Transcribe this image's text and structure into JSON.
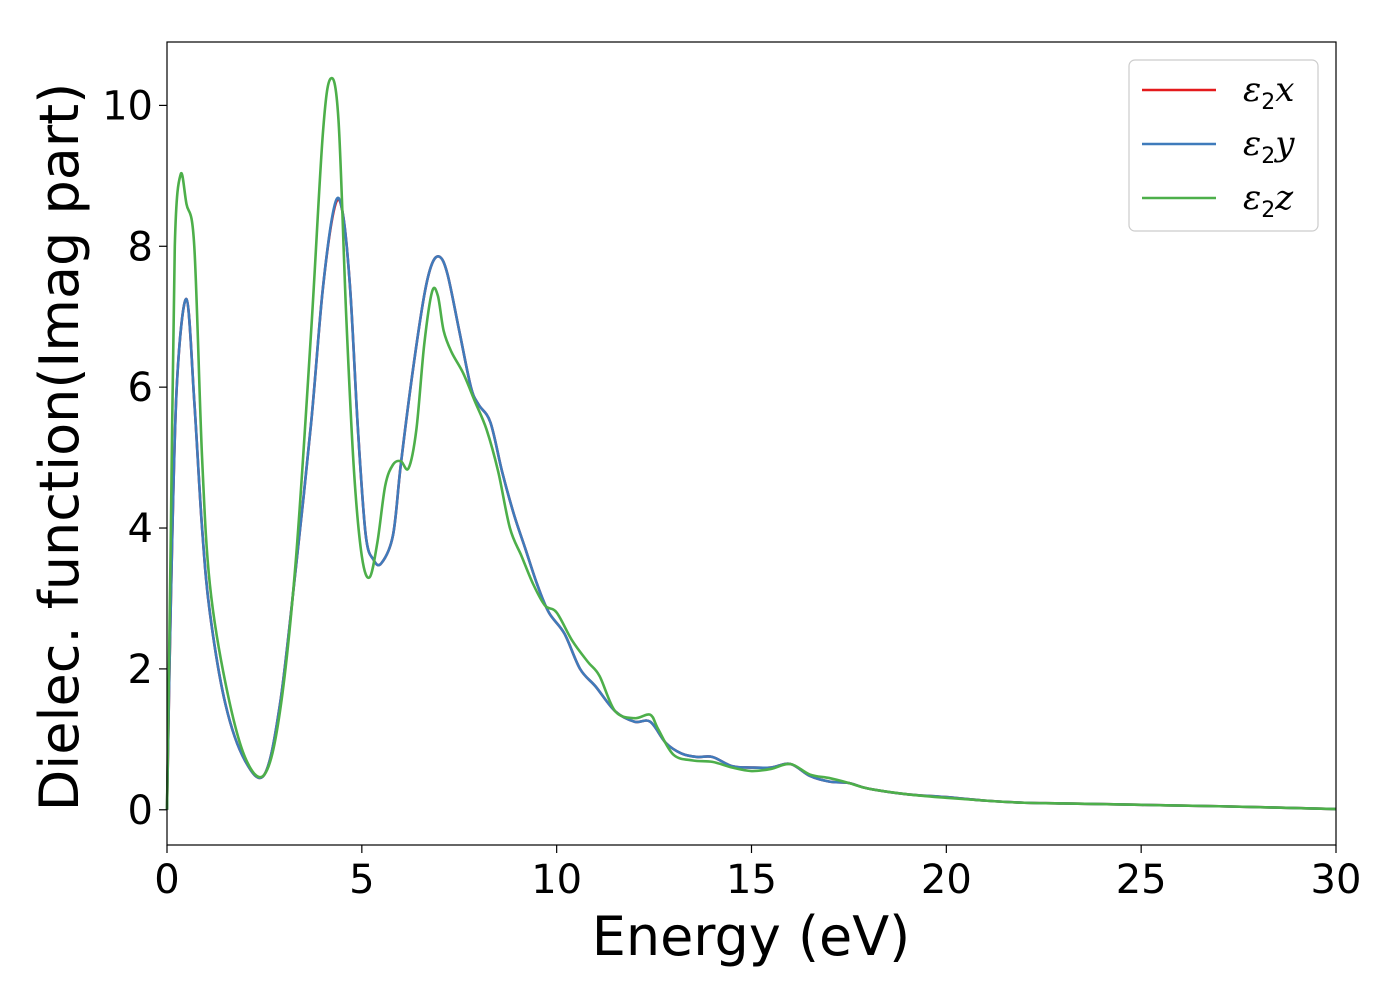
{
  "chart_data": {
    "type": "line",
    "xlabel": "Energy (eV)",
    "ylabel": "Dielec. function(Imag part)",
    "xlim": [
      0,
      30
    ],
    "ylim": [
      -0.5,
      10.9
    ],
    "xticks": [
      0,
      5,
      10,
      15,
      20,
      25,
      30
    ],
    "xtick_labels": [
      "0",
      "5",
      "10",
      "15",
      "20",
      "25",
      "30"
    ],
    "yticks": [
      0,
      2,
      4,
      6,
      8,
      10
    ],
    "ytick_labels": [
      "0",
      "2",
      "4",
      "6",
      "8",
      "10"
    ],
    "grid": false,
    "legend_position": "top-right",
    "series": [
      {
        "name": "ε2x",
        "legend": {
          "symbol": "ε",
          "sub": "2",
          "var": "x"
        },
        "color": "#e41a1c",
        "x": [
          0,
          0.1,
          0.25,
          0.5,
          0.7,
          0.9,
          1.1,
          1.5,
          2.0,
          2.5,
          2.9,
          3.3,
          3.7,
          4.0,
          4.3,
          4.5,
          4.7,
          4.9,
          5.1,
          5.3,
          5.5,
          5.8,
          6.0,
          6.3,
          6.6,
          6.8,
          7.0,
          7.2,
          7.5,
          7.8,
          8.0,
          8.3,
          8.6,
          8.9,
          9.2,
          9.5,
          9.8,
          10.2,
          10.6,
          11.0,
          11.5,
          12.0,
          12.4,
          12.8,
          13.2,
          13.6,
          14.0,
          14.5,
          15.0,
          15.5,
          16.0,
          16.5,
          17.0,
          17.5,
          18.0,
          19.0,
          20.0,
          21.0,
          22.0,
          23.0,
          25.0,
          27.0,
          30.0
        ],
        "y": [
          0.0,
          3.0,
          6.0,
          7.25,
          5.8,
          4.0,
          2.8,
          1.5,
          0.7,
          0.5,
          1.5,
          3.4,
          5.5,
          7.4,
          8.55,
          8.5,
          7.4,
          5.4,
          3.9,
          3.55,
          3.5,
          3.9,
          4.9,
          6.2,
          7.3,
          7.75,
          7.85,
          7.6,
          6.8,
          6.0,
          5.75,
          5.5,
          4.8,
          4.2,
          3.7,
          3.2,
          2.8,
          2.5,
          2.0,
          1.75,
          1.4,
          1.25,
          1.25,
          0.95,
          0.8,
          0.75,
          0.75,
          0.62,
          0.6,
          0.6,
          0.65,
          0.48,
          0.4,
          0.38,
          0.3,
          0.22,
          0.18,
          0.13,
          0.1,
          0.09,
          0.07,
          0.05,
          0.01
        ]
      },
      {
        "name": "ε2y",
        "legend": {
          "symbol": "ε",
          "sub": "2",
          "var": "y"
        },
        "color": "#3f7bbb",
        "x": [
          0,
          0.1,
          0.25,
          0.5,
          0.7,
          0.9,
          1.1,
          1.5,
          2.0,
          2.5,
          2.9,
          3.3,
          3.7,
          4.0,
          4.3,
          4.5,
          4.7,
          4.9,
          5.1,
          5.3,
          5.5,
          5.8,
          6.0,
          6.3,
          6.6,
          6.8,
          7.0,
          7.2,
          7.5,
          7.8,
          8.0,
          8.3,
          8.6,
          8.9,
          9.2,
          9.5,
          9.8,
          10.2,
          10.6,
          11.0,
          11.5,
          12.0,
          12.4,
          12.8,
          13.2,
          13.6,
          14.0,
          14.5,
          15.0,
          15.5,
          16.0,
          16.5,
          17.0,
          17.5,
          18.0,
          19.0,
          20.0,
          21.0,
          22.0,
          23.0,
          25.0,
          27.0,
          30.0
        ],
        "y": [
          0.0,
          3.0,
          6.0,
          7.25,
          5.8,
          4.0,
          2.8,
          1.5,
          0.7,
          0.5,
          1.5,
          3.4,
          5.5,
          7.4,
          8.58,
          8.5,
          7.4,
          5.4,
          3.9,
          3.55,
          3.5,
          3.9,
          4.9,
          6.2,
          7.3,
          7.75,
          7.85,
          7.6,
          6.8,
          6.0,
          5.75,
          5.5,
          4.8,
          4.2,
          3.7,
          3.2,
          2.8,
          2.5,
          2.0,
          1.75,
          1.4,
          1.25,
          1.25,
          0.95,
          0.8,
          0.75,
          0.75,
          0.62,
          0.6,
          0.6,
          0.65,
          0.48,
          0.4,
          0.38,
          0.3,
          0.22,
          0.18,
          0.13,
          0.1,
          0.09,
          0.07,
          0.05,
          0.01
        ]
      },
      {
        "name": "ε2z",
        "legend": {
          "symbol": "ε",
          "sub": "2",
          "var": "z"
        },
        "color": "#4daf4a",
        "x": [
          0,
          0.1,
          0.2,
          0.35,
          0.5,
          0.7,
          0.9,
          1.1,
          1.5,
          2.0,
          2.5,
          2.9,
          3.3,
          3.7,
          4.0,
          4.2,
          4.4,
          4.6,
          4.8,
          5.0,
          5.2,
          5.4,
          5.6,
          5.8,
          6.0,
          6.2,
          6.4,
          6.6,
          6.8,
          6.95,
          7.1,
          7.3,
          7.6,
          7.9,
          8.2,
          8.5,
          8.8,
          9.1,
          9.4,
          9.7,
          10.0,
          10.4,
          10.8,
          11.1,
          11.5,
          12.0,
          12.4,
          12.6,
          13.0,
          13.5,
          14.0,
          14.5,
          15.0,
          15.5,
          16.0,
          16.5,
          17.0,
          17.5,
          18.0,
          19.0,
          20.0,
          21.0,
          22.0,
          23.0,
          25.0,
          27.0,
          30.0
        ],
        "y": [
          0.0,
          4.0,
          8.0,
          9.02,
          8.6,
          8.0,
          5.0,
          3.2,
          1.8,
          0.75,
          0.5,
          1.4,
          3.5,
          6.8,
          9.6,
          10.38,
          9.8,
          7.0,
          4.8,
          3.6,
          3.3,
          3.8,
          4.6,
          4.9,
          4.95,
          4.85,
          5.4,
          6.6,
          7.35,
          7.3,
          6.8,
          6.5,
          6.2,
          5.8,
          5.4,
          4.8,
          4.0,
          3.6,
          3.2,
          2.9,
          2.8,
          2.4,
          2.1,
          1.9,
          1.4,
          1.3,
          1.35,
          1.15,
          0.78,
          0.7,
          0.68,
          0.6,
          0.55,
          0.58,
          0.65,
          0.5,
          0.45,
          0.38,
          0.3,
          0.22,
          0.17,
          0.13,
          0.1,
          0.09,
          0.07,
          0.05,
          0.01
        ]
      }
    ]
  }
}
